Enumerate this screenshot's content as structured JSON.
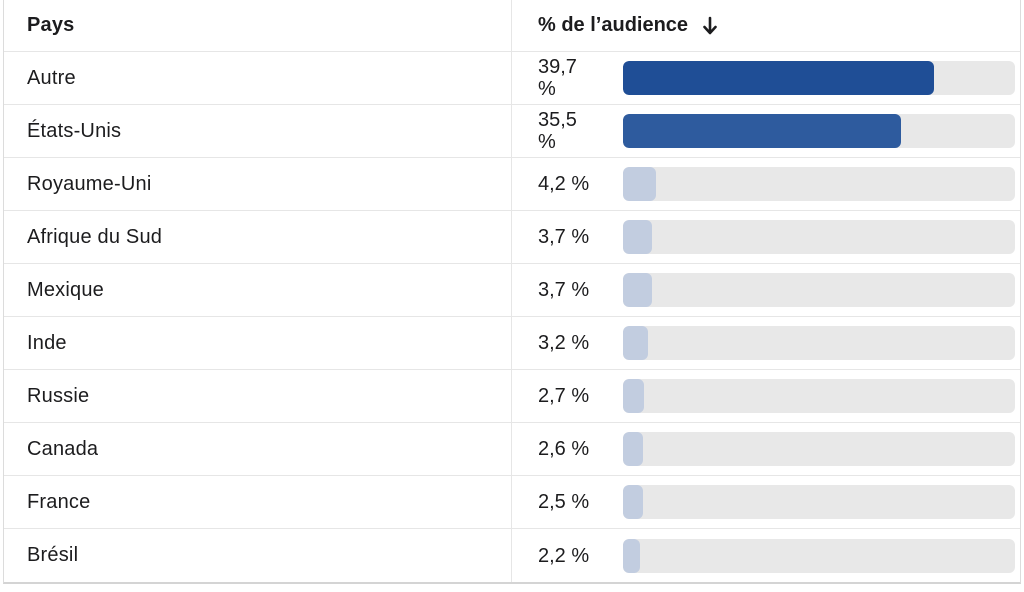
{
  "table": {
    "header": {
      "country_label": "Pays",
      "audience_label": "% de l’audience",
      "sort_icon": "arrow-down-icon"
    },
    "rows": [
      {
        "country": "Autre",
        "value_text": "39,7 %",
        "value": 39.7,
        "color": "#1f4e96"
      },
      {
        "country": "États-Unis",
        "value_text": "35,5 %",
        "value": 35.5,
        "color": "#2e5b9e"
      },
      {
        "country": "Royaume-Uni",
        "value_text": "4,2 %",
        "value": 4.2,
        "color": "#c2cde0"
      },
      {
        "country": "Afrique du Sud",
        "value_text": "3,7 %",
        "value": 3.7,
        "color": "#c2cde0"
      },
      {
        "country": "Mexique",
        "value_text": "3,7 %",
        "value": 3.7,
        "color": "#c2cde0"
      },
      {
        "country": "Inde",
        "value_text": "3,2 %",
        "value": 3.2,
        "color": "#c2cde0"
      },
      {
        "country": "Russie",
        "value_text": "2,7 %",
        "value": 2.7,
        "color": "#c2cde0"
      },
      {
        "country": "Canada",
        "value_text": "2,6 %",
        "value": 2.6,
        "color": "#c2cde0"
      },
      {
        "country": "France",
        "value_text": "2,5 %",
        "value": 2.5,
        "color": "#c2cde0"
      },
      {
        "country": "Brésil",
        "value_text": "2,2 %",
        "value": 2.2,
        "color": "#c2cde0"
      }
    ]
  }
}
